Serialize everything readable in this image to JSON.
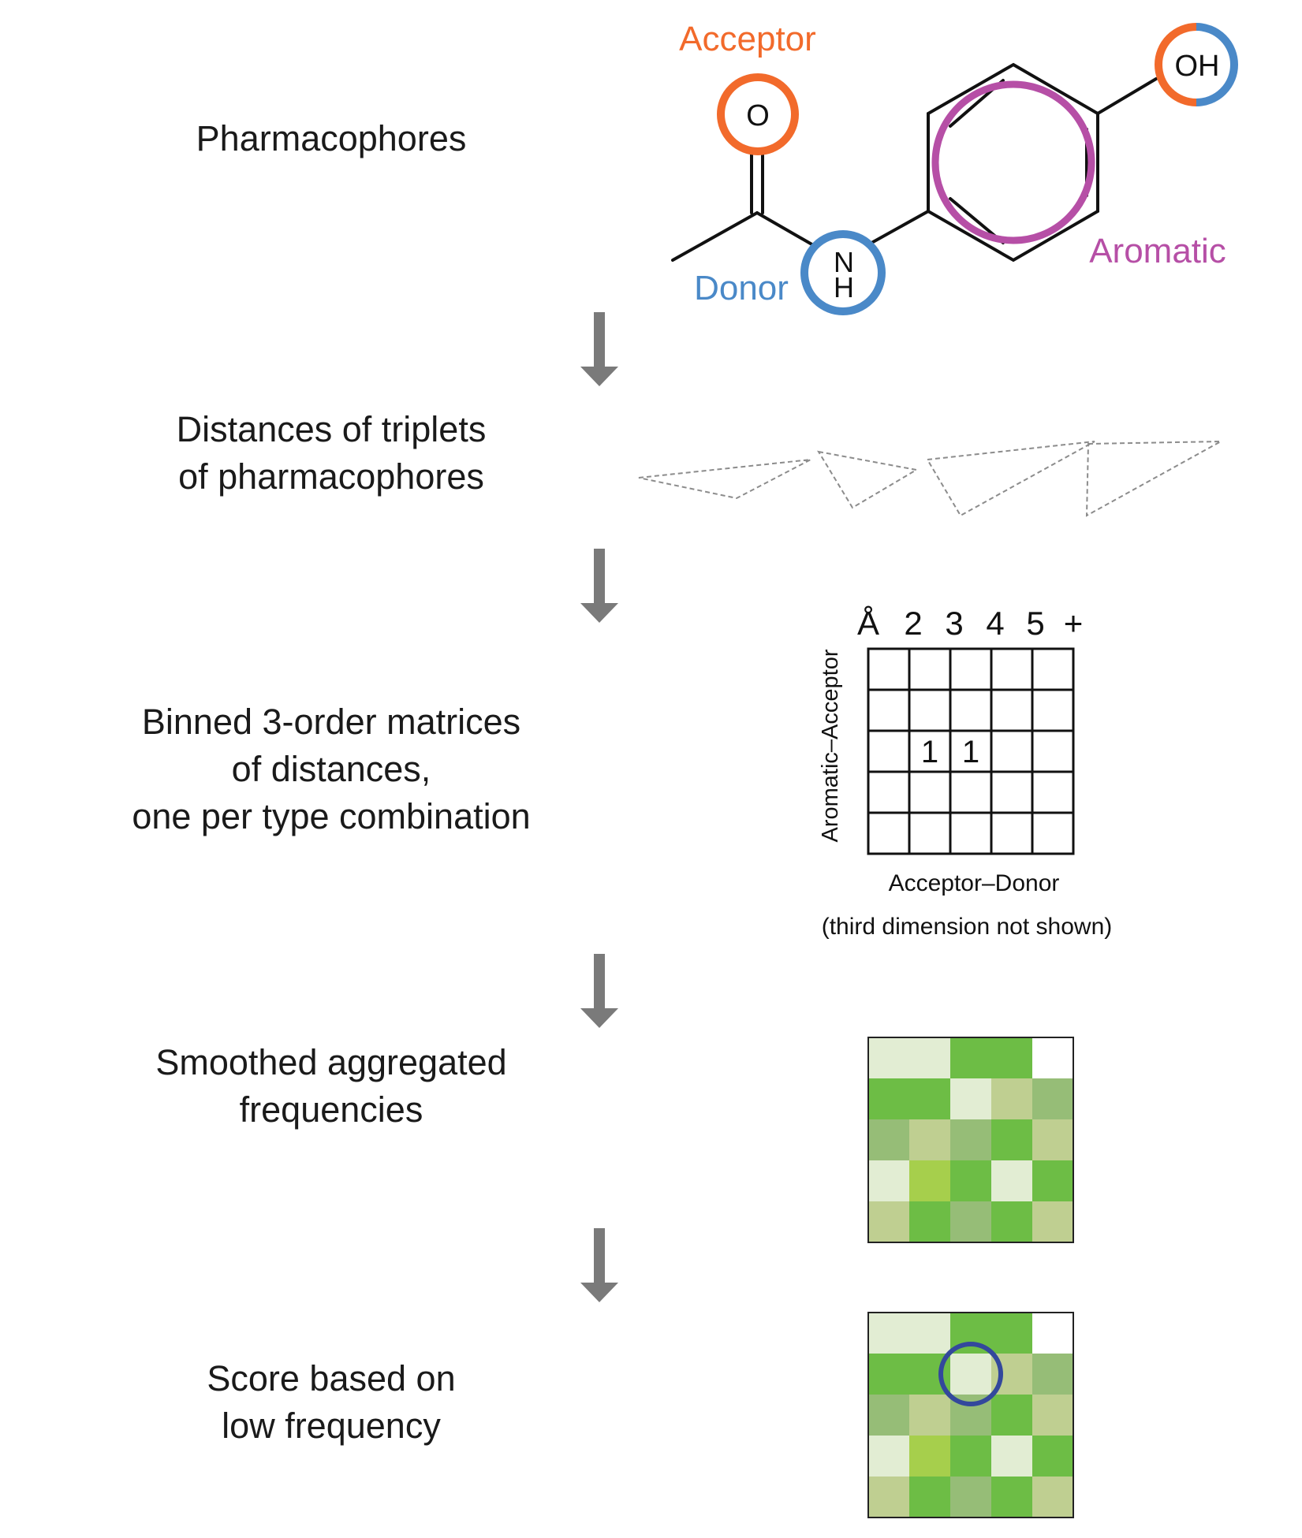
{
  "steps": [
    {
      "label": "Pharmacophores"
    },
    {
      "label": "Distances of triplets\nof pharmacophores"
    },
    {
      "label": "Binned 3-order matrices\nof distances,\none per type combination"
    },
    {
      "label": "Smoothed aggregated\nfrequencies"
    },
    {
      "label": "Score based on\nlow frequency"
    }
  ],
  "molecule": {
    "atom_o": "O",
    "atom_n": "N",
    "atom_h": "H",
    "atom_oh": "OH",
    "labels": {
      "acceptor": "Acceptor",
      "donor": "Donor",
      "aromatic": "Aromatic"
    },
    "colors": {
      "acceptor": "#f26a2b",
      "donor": "#4a89c8",
      "aromatic": "#b64fa6"
    }
  },
  "binned_matrix": {
    "column_headers": [
      "Å",
      "2",
      "3",
      "4",
      "5",
      "+"
    ],
    "y_label": "Aromatic–Acceptor",
    "x_label": "Acceptor–Donor",
    "note": "(third dimension not shown)",
    "cells": [
      [
        "",
        "",
        "",
        "",
        ""
      ],
      [
        "",
        "",
        "",
        "",
        ""
      ],
      [
        "",
        "1",
        "1",
        "",
        ""
      ],
      [
        "",
        "",
        "",
        "",
        ""
      ],
      [
        "",
        "",
        "",
        "",
        ""
      ]
    ]
  },
  "frequency_grid": [
    [
      "#e2edd3",
      "#e2edd3",
      "#6dbd45",
      "#6dbd45",
      "#ffffff"
    ],
    [
      "#6dbd45",
      "#6dbd45",
      "#e2edd3",
      "#bfcf91",
      "#96bd77"
    ],
    [
      "#96bd77",
      "#bfcf91",
      "#96bd77",
      "#6dbd45",
      "#bfcf91"
    ],
    [
      "#e2edd3",
      "#a6cf4c",
      "#6dbd45",
      "#e2edd3",
      "#6dbd45"
    ],
    [
      "#bfcf91",
      "#6dbd45",
      "#96bd77",
      "#6dbd45",
      "#bfcf91"
    ]
  ],
  "highlight": {
    "row": 1,
    "col": 2,
    "color": "#33489c"
  },
  "colors": {
    "arrow": "#7a7a7a",
    "bond": "#111111",
    "triangle": "#8c8c8c"
  }
}
